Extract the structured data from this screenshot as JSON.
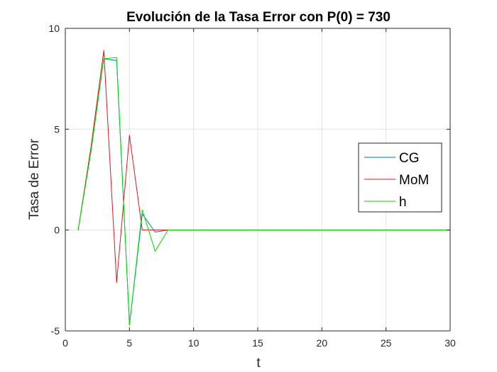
{
  "chart_data": {
    "type": "line",
    "title": "Evolución de la Tasa Error con P(0) = 730",
    "xlabel": "t",
    "ylabel": "Tasa de Error",
    "xlim": [
      0,
      30
    ],
    "ylim": [
      -5,
      10
    ],
    "xticks": [
      0,
      5,
      10,
      15,
      20,
      25,
      30
    ],
    "yticks": [
      -5,
      0,
      5,
      10
    ],
    "xtick_labels": [
      "0",
      "5",
      "10",
      "15",
      "20",
      "25",
      "30"
    ],
    "ytick_labels": [
      "-5",
      "0",
      "5",
      "10"
    ],
    "grid": true,
    "legend_position": "right",
    "series": [
      {
        "name": "CG",
        "color": "#0072BD",
        "x": [
          1,
          2,
          3,
          4,
          5,
          6,
          7,
          8,
          9,
          10,
          11,
          12,
          13,
          14,
          15,
          16,
          17,
          18,
          19,
          20,
          21,
          22,
          23,
          24,
          25,
          26,
          27,
          28,
          29,
          30
        ],
        "y": [
          0,
          3.9,
          8.5,
          8.4,
          -4.7,
          0.8,
          -0.1,
          0,
          0,
          0,
          0,
          0,
          0,
          0,
          0,
          0,
          0,
          0,
          0,
          0,
          0,
          0,
          0,
          0,
          0,
          0,
          0,
          0,
          0,
          0
        ]
      },
      {
        "name": "MoM",
        "color": "#E0141E",
        "x": [
          1,
          2,
          3,
          4,
          5,
          6,
          7,
          8,
          9,
          10,
          11,
          12,
          13,
          14,
          15,
          16,
          17,
          18,
          19,
          20,
          21,
          22,
          23,
          24,
          25,
          26,
          27,
          28,
          29,
          30
        ],
        "y": [
          0,
          4.1,
          8.9,
          -2.6,
          4.7,
          0,
          0,
          0,
          0,
          0,
          0,
          0,
          0,
          0,
          0,
          0,
          0,
          0,
          0,
          0,
          0,
          0,
          0,
          0,
          0,
          0,
          0,
          0,
          0,
          0
        ]
      },
      {
        "name": "h",
        "color": "#00E000",
        "x": [
          1,
          2,
          3,
          4,
          5,
          6,
          7,
          8,
          9,
          10,
          11,
          12,
          13,
          14,
          15,
          16,
          17,
          18,
          19,
          20,
          21,
          22,
          23,
          24,
          25,
          26,
          27,
          28,
          29,
          30
        ],
        "y": [
          0,
          3.9,
          8.5,
          8.55,
          -4.7,
          1.0,
          -1.05,
          0,
          0,
          0,
          0,
          0,
          0,
          0,
          0,
          0,
          0,
          0,
          0,
          0,
          0,
          0,
          0,
          0,
          0,
          0,
          0,
          0,
          0,
          0
        ]
      }
    ]
  }
}
